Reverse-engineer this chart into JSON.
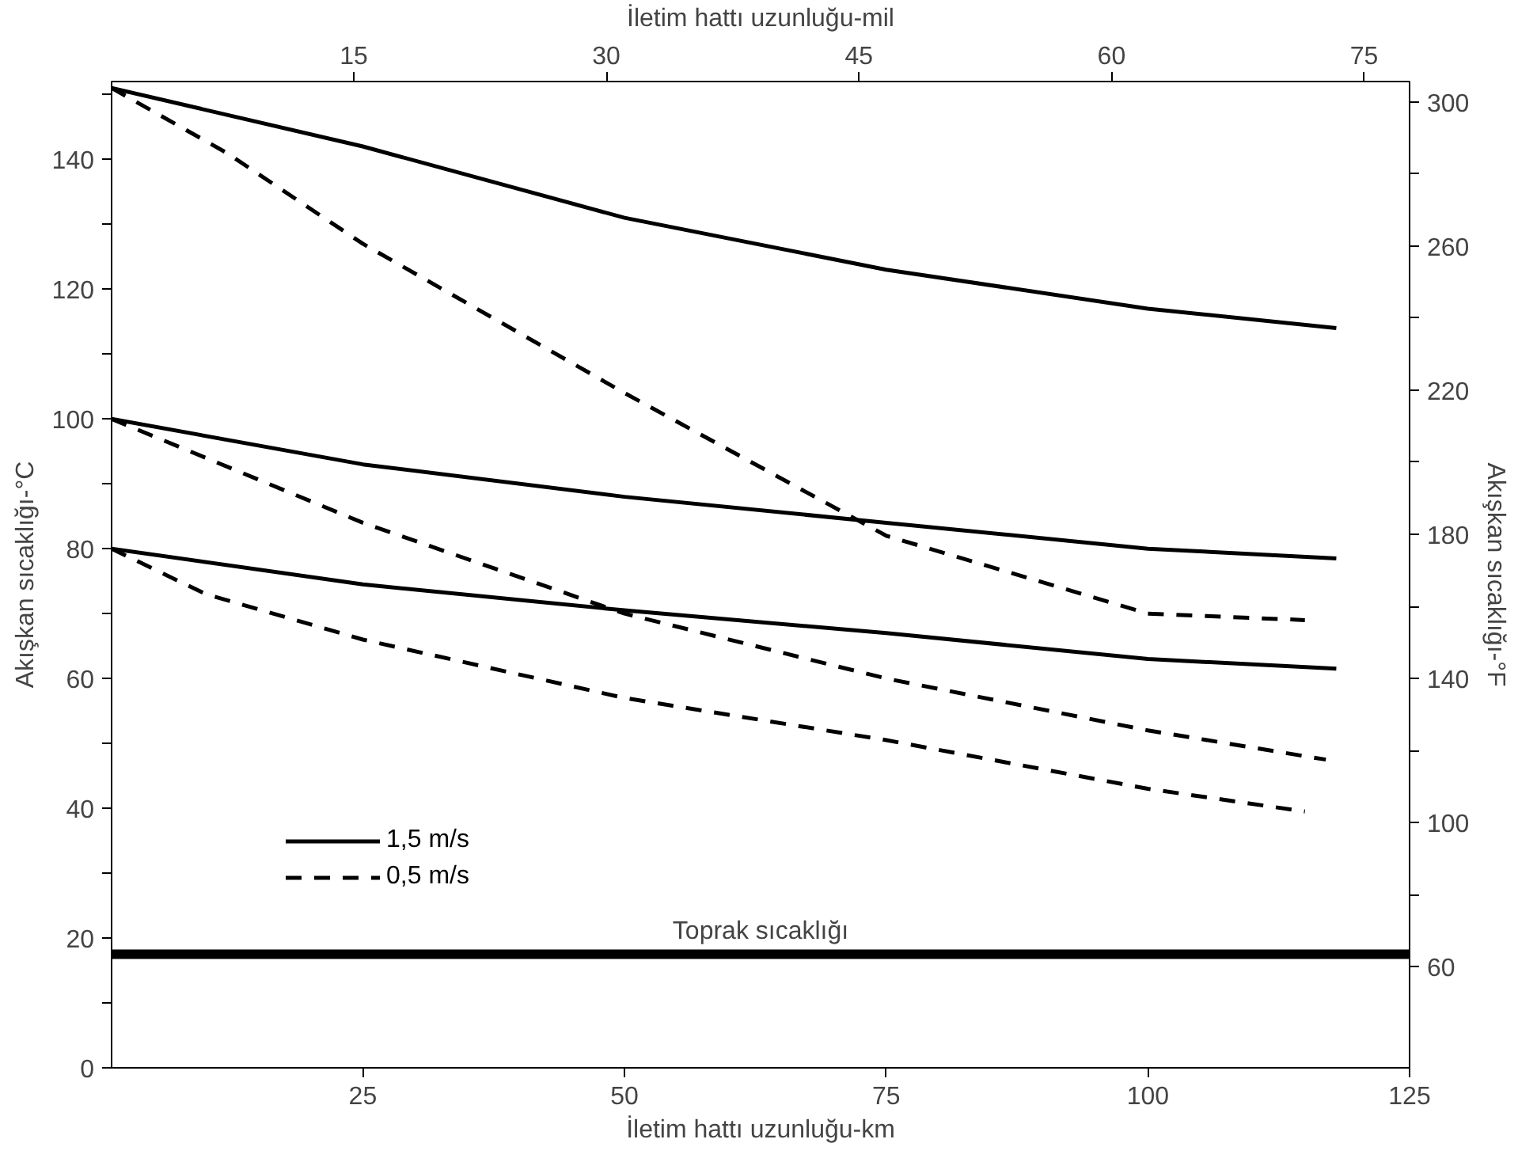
{
  "chart_data": {
    "type": "line",
    "xlabel": "İletim hattı uzunluğu-km",
    "ylabel": "Akışkan sıcaklığı-°C",
    "y2label": "Akışkan sıcaklığı-°F",
    "x2label": "İletim hattı uzunluğu-mil",
    "xlim": [
      1,
      125
    ],
    "xticks": [
      25,
      50,
      75,
      100,
      125
    ],
    "x2lim": [
      0.62,
      77.7
    ],
    "x2ticks": [
      15,
      30,
      45,
      60,
      75
    ],
    "ylim": [
      0,
      152
    ],
    "yticks": [
      0,
      {
        "value": 10,
        "label": null
      },
      20,
      {
        "value": 30,
        "label": null
      },
      40,
      {
        "value": 50,
        "label": null
      },
      60,
      {
        "value": 70,
        "label": null
      },
      80,
      {
        "value": 90,
        "label": null
      },
      100,
      {
        "value": 110,
        "label": null
      },
      120,
      {
        "value": 130,
        "label": null
      },
      140,
      {
        "value": 150,
        "label": null
      }
    ],
    "y2lim": [
      32,
      305.6
    ],
    "y2ticks": [
      60,
      {
        "value": 80,
        "label": null
      },
      100,
      {
        "value": 120,
        "label": null
      },
      140,
      {
        "value": 160,
        "label": null
      },
      180,
      {
        "value": 200,
        "label": null
      },
      220,
      {
        "value": 240,
        "label": null
      },
      260,
      {
        "value": 280,
        "label": null
      },
      300
    ],
    "grid": false,
    "legend": "bottom left",
    "marker": "none",
    "series": [
      {
        "name": "1,5 m/s",
        "color": "#000000",
        "line_style": "solid",
        "x": [
          1,
          25,
          50,
          75,
          100,
          118
        ],
        "values": [
          151,
          142,
          131,
          123,
          117,
          114
        ]
      },
      {
        "name": "0,5 m/s",
        "color": "#000000",
        "line_style": "dashed",
        "x": [
          1,
          12,
          25,
          50,
          75,
          100,
          115
        ],
        "values": [
          151,
          141,
          127,
          104,
          82,
          70,
          69
        ]
      },
      {
        "color": "#000000",
        "line_style": "solid",
        "x": [
          1,
          25,
          50,
          75,
          100,
          118
        ],
        "values": [
          100,
          93,
          88,
          84,
          80,
          78.5
        ]
      },
      {
        "color": "#000000",
        "line_style": "dashed",
        "x": [
          1,
          25,
          50,
          75,
          100,
          117
        ],
        "values": [
          100,
          84,
          70,
          60,
          52,
          47.5
        ]
      },
      {
        "color": "#000000",
        "line_style": "solid",
        "x": [
          1,
          25,
          50,
          75,
          100,
          118
        ],
        "values": [
          80,
          74.5,
          70.5,
          67,
          63,
          61.5
        ]
      },
      {
        "color": "#000000",
        "line_style": "dashed",
        "x": [
          1,
          10,
          25,
          50,
          75,
          100,
          115
        ],
        "values": [
          80,
          73,
          66,
          57,
          50.5,
          43,
          39.5
        ]
      }
    ],
    "ref_lines": [
      {
        "axis": "y",
        "value": 17.5,
        "label": "Toprak sıcaklığı",
        "color": "#000000"
      }
    ]
  }
}
